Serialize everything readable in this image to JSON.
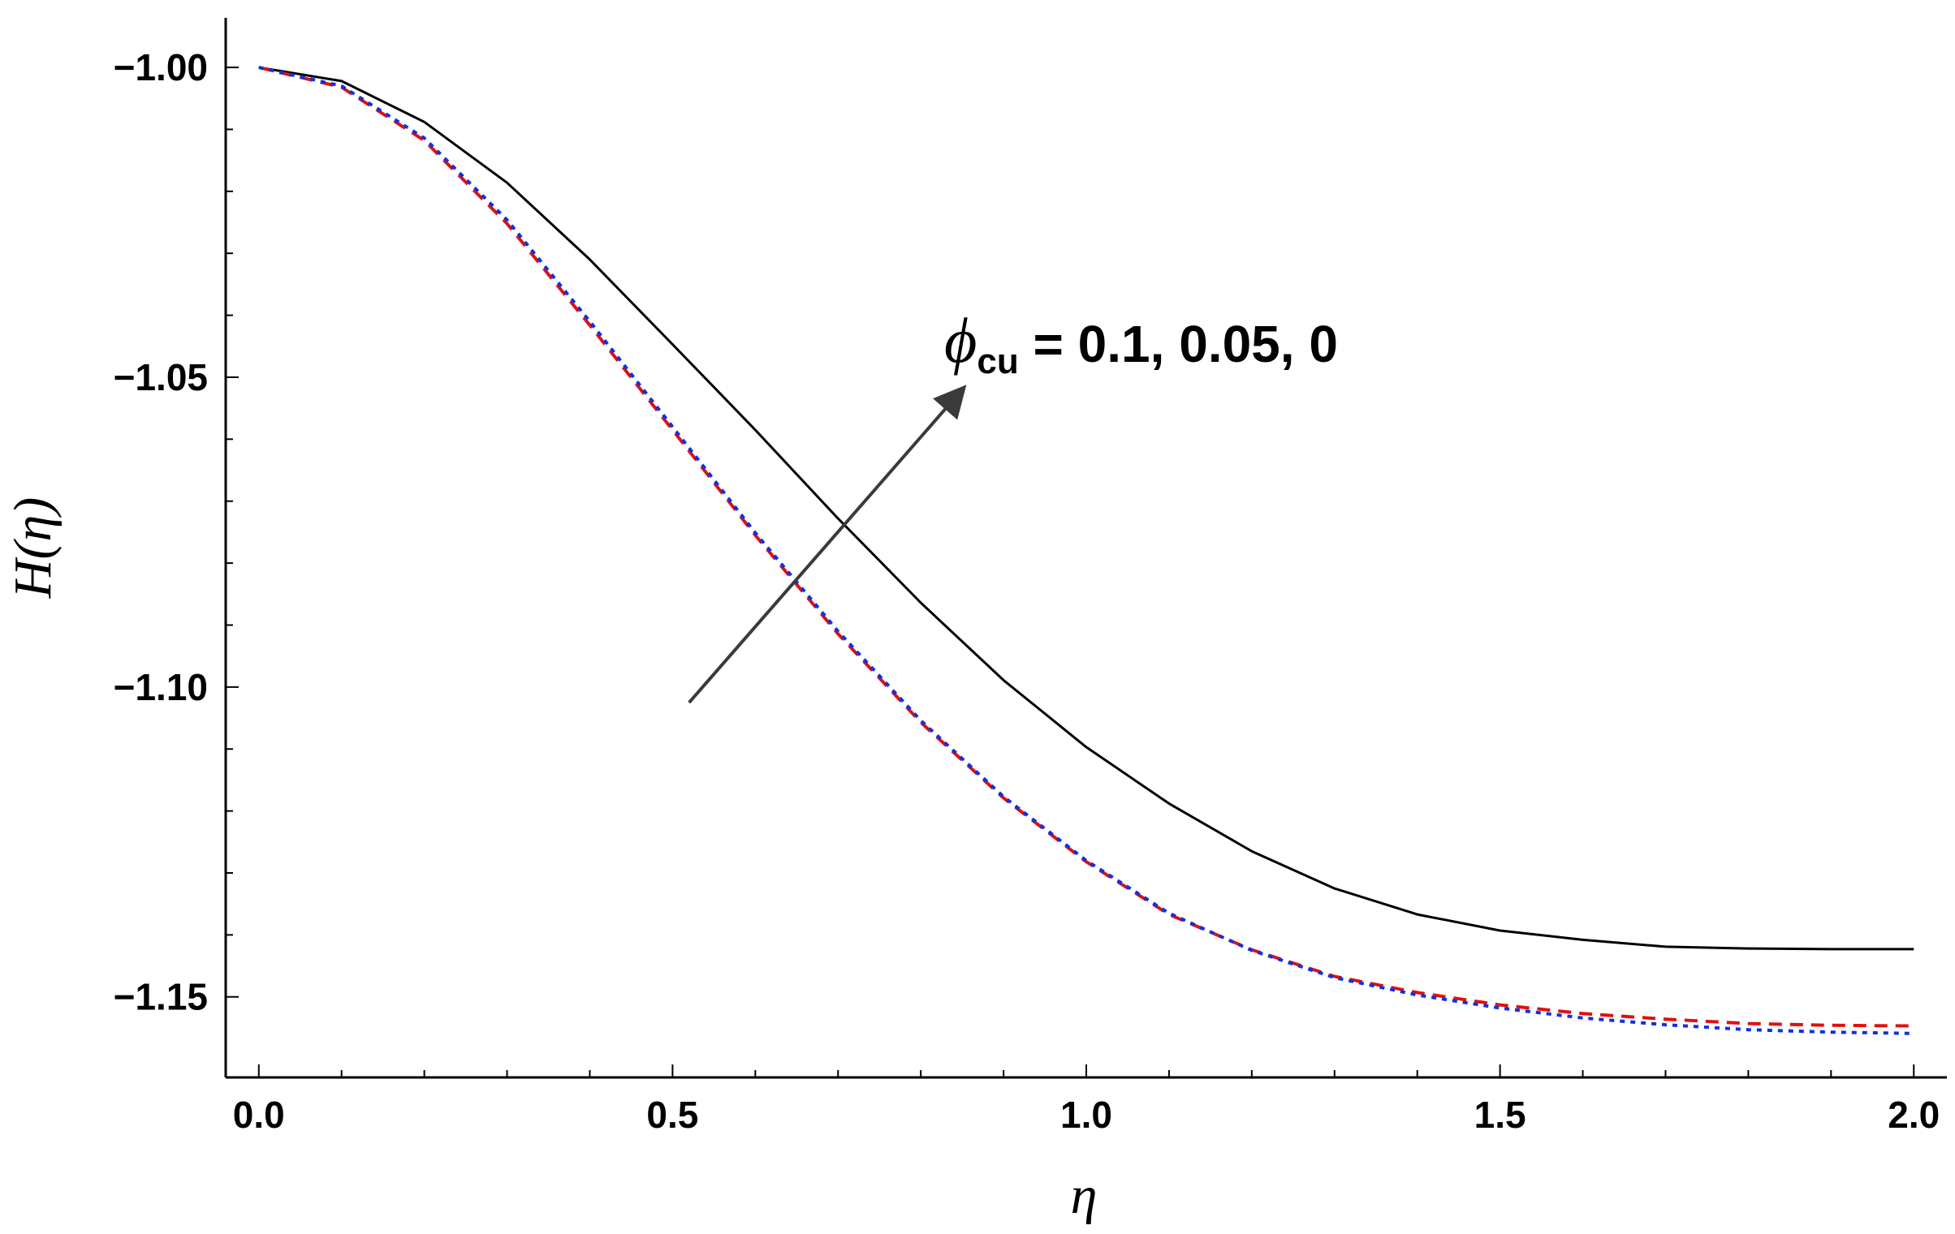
{
  "chart_data": {
    "type": "line",
    "title": "",
    "xlabel": "η",
    "ylabel": "H(η)",
    "xlim": [
      -0.04,
      2.04
    ],
    "ylim": [
      -1.163,
      -0.992
    ],
    "x_ticks": [
      "0.0",
      "0.5",
      "1.0",
      "1.5",
      "2.0"
    ],
    "y_ticks": [
      "-1.00",
      "-1.05",
      "-1.10",
      "-1.15"
    ],
    "grid": false,
    "legend": "none",
    "annotation": {
      "symbol": "ϕ",
      "subscript": "cu",
      "text": " = 0.1, 0.05, 0",
      "arrow_from": [
        0.52,
        -1.1025
      ],
      "arrow_to": [
        0.85,
        -1.052
      ]
    },
    "x": [
      0.0,
      0.1,
      0.2,
      0.3,
      0.4,
      0.5,
      0.6,
      0.7,
      0.8,
      0.9,
      1.0,
      1.1,
      1.2,
      1.3,
      1.4,
      1.5,
      1.6,
      1.7,
      1.8,
      1.9,
      2.0
    ],
    "series": [
      {
        "color": "#000000",
        "style": "solid",
        "values": [
          -1.0,
          -1.0022,
          -1.0088,
          -1.0186,
          -1.031,
          -1.0447,
          -1.0585,
          -1.0728,
          -1.0864,
          -1.0989,
          -1.1097,
          -1.1188,
          -1.1265,
          -1.1325,
          -1.1367,
          -1.1393,
          -1.1408,
          -1.1419,
          -1.1422,
          -1.1423,
          -1.1423
        ]
      },
      {
        "color": "#e01010",
        "style": "dashed",
        "values": [
          -1.0,
          -1.0032,
          -1.0118,
          -1.0252,
          -1.0416,
          -1.0585,
          -1.0755,
          -1.0914,
          -1.1057,
          -1.1179,
          -1.1282,
          -1.1367,
          -1.1424,
          -1.1467,
          -1.1493,
          -1.1513,
          -1.1527,
          -1.1536,
          -1.1543,
          -1.1546,
          -1.1547
        ]
      },
      {
        "color": "#1030e0",
        "style": "dotted",
        "values": [
          -1.0,
          -1.003,
          -1.0114,
          -1.0246,
          -1.041,
          -1.058,
          -1.0751,
          -1.091,
          -1.1054,
          -1.1177,
          -1.128,
          -1.1365,
          -1.1425,
          -1.1469,
          -1.1497,
          -1.1518,
          -1.1534,
          -1.1545,
          -1.1553,
          -1.1557,
          -1.1559
        ]
      }
    ]
  }
}
